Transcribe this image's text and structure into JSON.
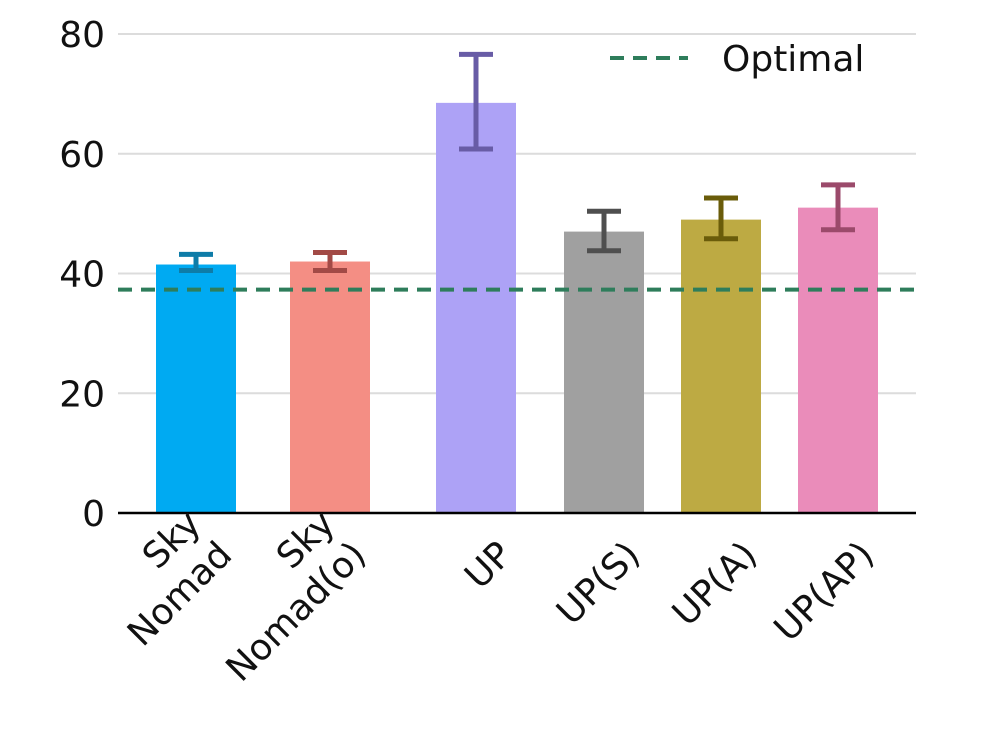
{
  "chart_data": {
    "type": "bar",
    "categories": [
      [
        "Sky",
        "Nomad"
      ],
      [
        "Sky",
        "Nomad(o)"
      ],
      [
        "UP"
      ],
      [
        "UP(S)"
      ],
      [
        "UP(A)"
      ],
      [
        "UP(AP)"
      ]
    ],
    "values": [
      41.5,
      42,
      68.5,
      47,
      49,
      51
    ],
    "error_low": [
      40.5,
      40.5,
      60.8,
      43.8,
      45.8,
      47.3
    ],
    "error_high": [
      43.2,
      43.5,
      76.6,
      50.4,
      52.6,
      54.8
    ],
    "bar_colors": [
      "#00aaf2",
      "#f48e84",
      "#ada2f6",
      "#a0a0a0",
      "#bdaa43",
      "#ea8cba"
    ],
    "error_colors": [
      "#0e7ca8",
      "#a24a46",
      "#685ca6",
      "#4f4f4f",
      "#6a5c0a",
      "#9b4a6b"
    ],
    "reference_line": {
      "label": "Optimal",
      "value": 37.3,
      "color": "#2e7d5b",
      "style": "dashed"
    },
    "ylim": [
      0,
      80
    ],
    "yticks": [
      0,
      20,
      40,
      60,
      80
    ],
    "grid": true,
    "legend_position": "top-right",
    "title": "",
    "xlabel": "",
    "ylabel": ""
  }
}
